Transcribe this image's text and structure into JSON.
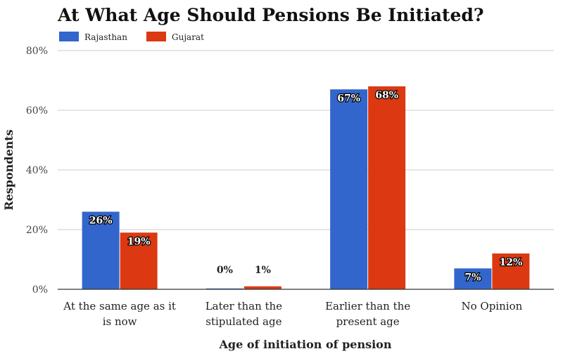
{
  "colors": {
    "Rajasthan": "#3366cc",
    "Gujarat": "#dc3912"
  },
  "chart_data": {
    "type": "bar",
    "title": "At What Age Should Pensions Be Initiated?",
    "xlabel": "Age of initiation of pension",
    "ylabel": "Respondents",
    "ylim": [
      0,
      80
    ],
    "yticks": [
      "0%",
      "20%",
      "40%",
      "60%",
      "80%"
    ],
    "grid": true,
    "legend_position": "top-left",
    "categories": [
      [
        "At the same age as it",
        "is now"
      ],
      [
        "Later than the",
        "stipulated age"
      ],
      [
        "Earlier than the",
        "present age"
      ],
      [
        "No Opinion"
      ]
    ],
    "series": [
      {
        "name": "Rajasthan",
        "values": [
          26,
          0,
          67,
          7
        ],
        "labels": [
          "26%",
          "0%",
          "67%",
          "7%"
        ]
      },
      {
        "name": "Gujarat",
        "values": [
          19,
          1,
          68,
          12
        ],
        "labels": [
          "19%",
          "1%",
          "68%",
          "12%"
        ]
      }
    ]
  }
}
